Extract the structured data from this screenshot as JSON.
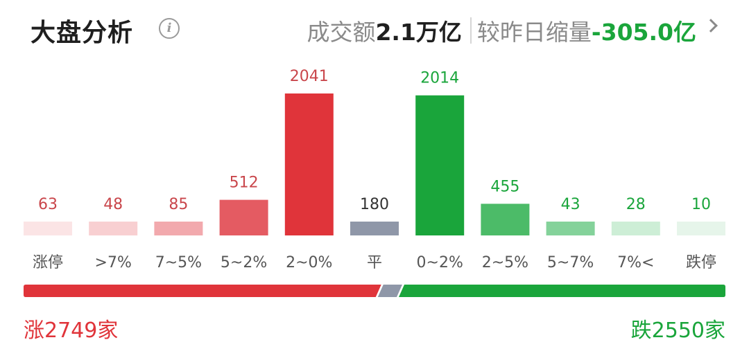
{
  "header": {
    "title": "大盘分析",
    "info_icon": "info-icon",
    "turnover_label": "成交额",
    "turnover_value": "2.1万亿",
    "compare_label": "较昨日缩量",
    "compare_value": "-305.0亿",
    "more_icon": "chevron-right-icon"
  },
  "chart_data": {
    "type": "bar",
    "title": "",
    "categories": [
      "涨停",
      ">7%",
      "7~5%",
      "5~2%",
      "2~0%",
      "平",
      "0~2%",
      "2~5%",
      "5~7%",
      "7%<",
      "跌停"
    ],
    "values": [
      63,
      48,
      85,
      512,
      2041,
      180,
      2014,
      455,
      43,
      28,
      10
    ],
    "bar_colors": [
      "#fbe4e5",
      "#f8cfd1",
      "#f2a9ad",
      "#e45b62",
      "#e0343a",
      "#8f97a8",
      "#1aa53b",
      "#4cbb68",
      "#84d29a",
      "#cdeed6",
      "#e6f5ea"
    ],
    "label_colors": [
      "#c9464b",
      "#c9464b",
      "#c9464b",
      "#c9464b",
      "#c9464b",
      "#333333",
      "#1aa53b",
      "#1aa53b",
      "#1aa53b",
      "#1aa53b",
      "#1aa53b"
    ],
    "xlabel": "",
    "ylabel": "",
    "ylim": [
      0,
      2041
    ],
    "grid": false,
    "legend": "none"
  },
  "breadth": {
    "up_count": 2749,
    "flat_count": 180,
    "down_count": 2550,
    "up_label": "涨2749家",
    "down_label": "跌2550家",
    "up_color": "#e0343a",
    "flat_color": "#8f97a8",
    "down_color": "#1aa53b"
  }
}
